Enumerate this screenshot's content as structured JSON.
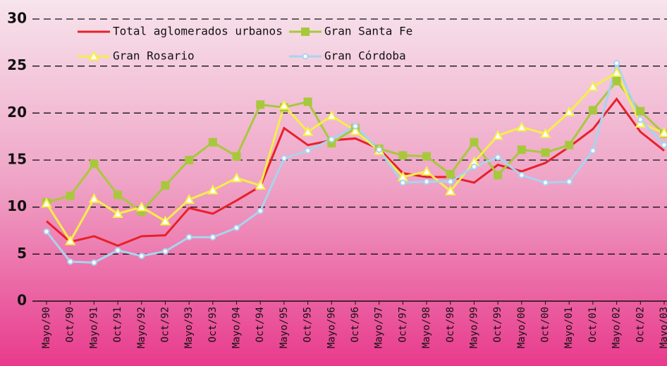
{
  "chart_data": {
    "type": "line",
    "categories": [
      "Mayo/90",
      "Oct/90",
      "Mayo/91",
      "Oct/91",
      "Mayo/92",
      "Oct/92",
      "Mayo/93",
      "Oct/93",
      "Mayo/94",
      "Oct/94",
      "Mayo/95",
      "Oct/95",
      "Mayo/96",
      "Oct/96",
      "Mayo/97",
      "Oct/97",
      "Mayo/98",
      "Oct/98",
      "Mayo/99",
      "Oct/99",
      "Mayo/00",
      "Oct/00",
      "Mayo/01",
      "Oct/01",
      "Mayo/02",
      "Oct/02",
      "Mayo/03"
    ],
    "series": [
      {
        "name": "Total  aglomerados urbanos",
        "color": "#e8202a",
        "marker": "none",
        "values": [
          8.5,
          6.3,
          6.9,
          5.9,
          6.9,
          7.0,
          9.9,
          9.3,
          10.7,
          12.2,
          18.4,
          16.6,
          17.1,
          17.3,
          16.2,
          13.6,
          13.2,
          13.2,
          12.6,
          14.5,
          13.8,
          14.7,
          16.4,
          18.3,
          21.5,
          18.0,
          16.0
        ]
      },
      {
        "name": "Gran Santa Fe",
        "color": "#a8c83c",
        "marker": "square",
        "values": [
          10.5,
          11.2,
          14.6,
          11.3,
          9.5,
          12.3,
          15.0,
          16.9,
          15.4,
          20.9,
          20.6,
          21.2,
          16.8,
          18.4,
          16.2,
          15.5,
          15.4,
          13.5,
          16.9,
          13.4,
          16.1,
          15.8,
          16.6,
          20.3,
          23.4,
          20.2,
          17.8
        ]
      },
      {
        "name": "Gran Rosario",
        "color": "#f5ee4a",
        "marker": "triangle",
        "values": [
          10.4,
          6.4,
          10.9,
          9.3,
          10.0,
          8.5,
          10.8,
          11.8,
          13.1,
          12.3,
          20.8,
          18.0,
          19.7,
          18.1,
          16.0,
          13.2,
          13.8,
          11.7,
          14.8,
          17.6,
          18.5,
          17.8,
          20.1,
          22.8,
          24.3,
          18.9,
          17.9
        ]
      },
      {
        "name": "Gran Córdoba",
        "color": "#a8d4ee",
        "marker": "circle",
        "values": [
          7.4,
          4.2,
          4.1,
          5.4,
          4.8,
          5.3,
          6.8,
          6.8,
          7.8,
          9.6,
          15.2,
          16.0,
          17.2,
          18.6,
          16.1,
          12.6,
          12.7,
          12.7,
          14.3,
          15.3,
          13.4,
          12.6,
          12.7,
          16.0,
          25.3,
          19.3,
          16.6
        ]
      }
    ],
    "ylim": [
      0,
      30
    ],
    "yticks": [
      0,
      5,
      10,
      15,
      20,
      25,
      30
    ],
    "grid": true
  }
}
